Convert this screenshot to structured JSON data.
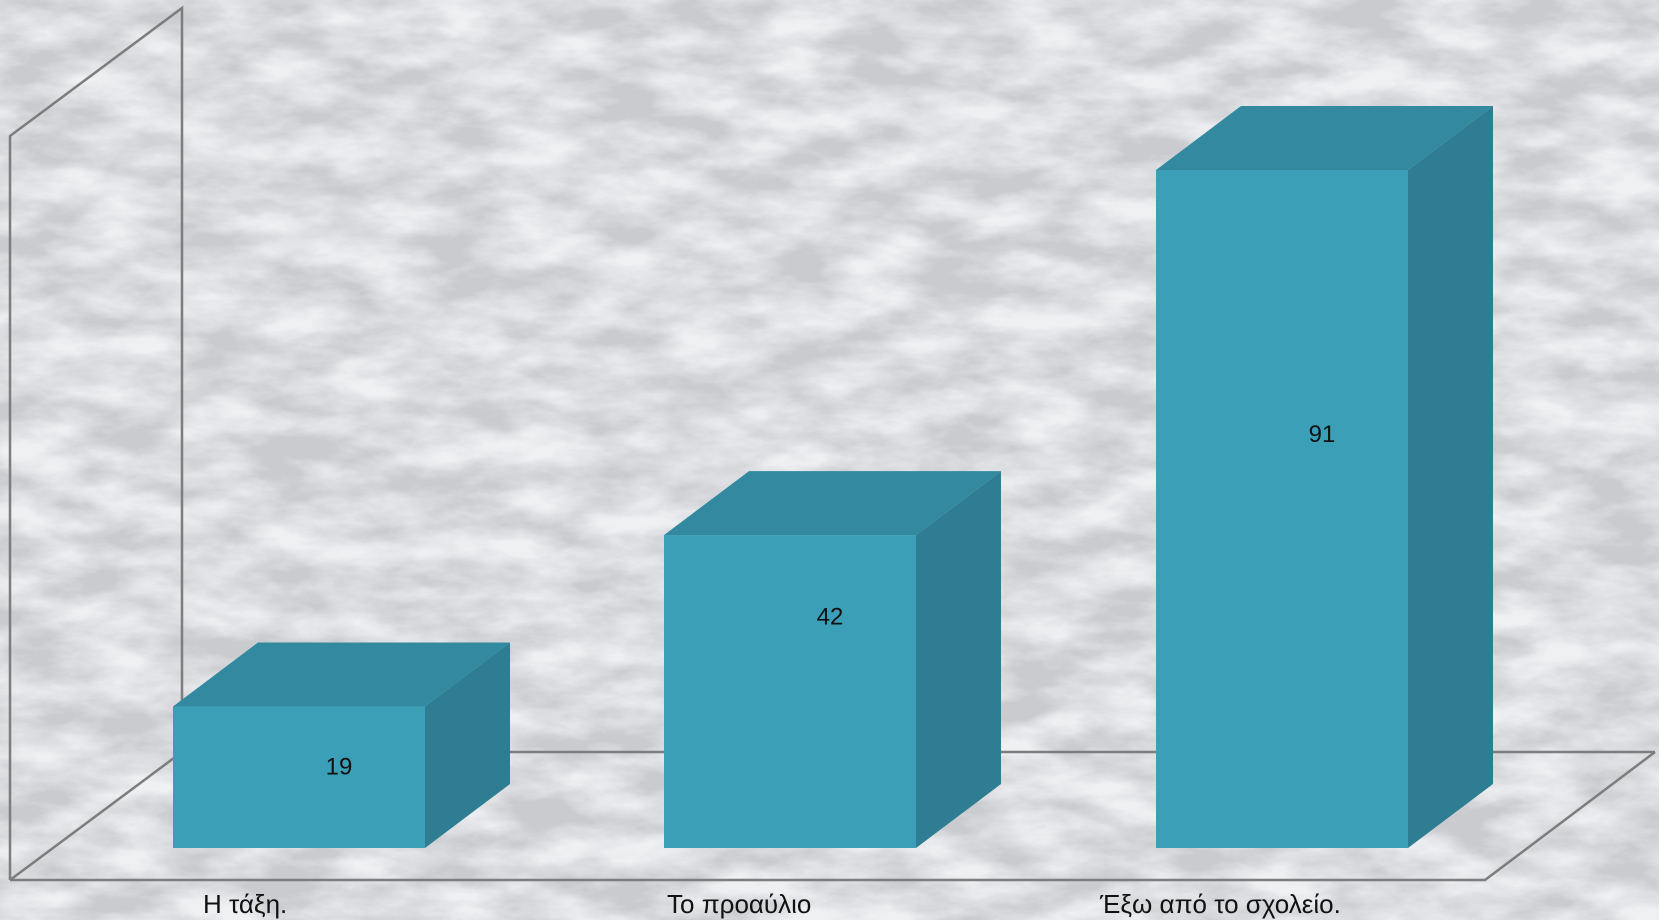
{
  "chart_data": {
    "type": "bar",
    "style": "3d-column",
    "categories": [
      "Η τάξη.",
      "Το προαύλιο",
      "Έξω από το σχολείο."
    ],
    "values": [
      19,
      42,
      91
    ],
    "title": "",
    "xlabel": "",
    "ylabel": "",
    "ylim": [
      0,
      91
    ],
    "grid": false,
    "legend": "none",
    "data_labels": true,
    "colors": {
      "bar_front": "#3c9fb8",
      "bar_top": "#3389a0",
      "bar_side": "#2e7d92",
      "background": "marble-gray",
      "axis_frame": "#7d7d7d"
    }
  }
}
